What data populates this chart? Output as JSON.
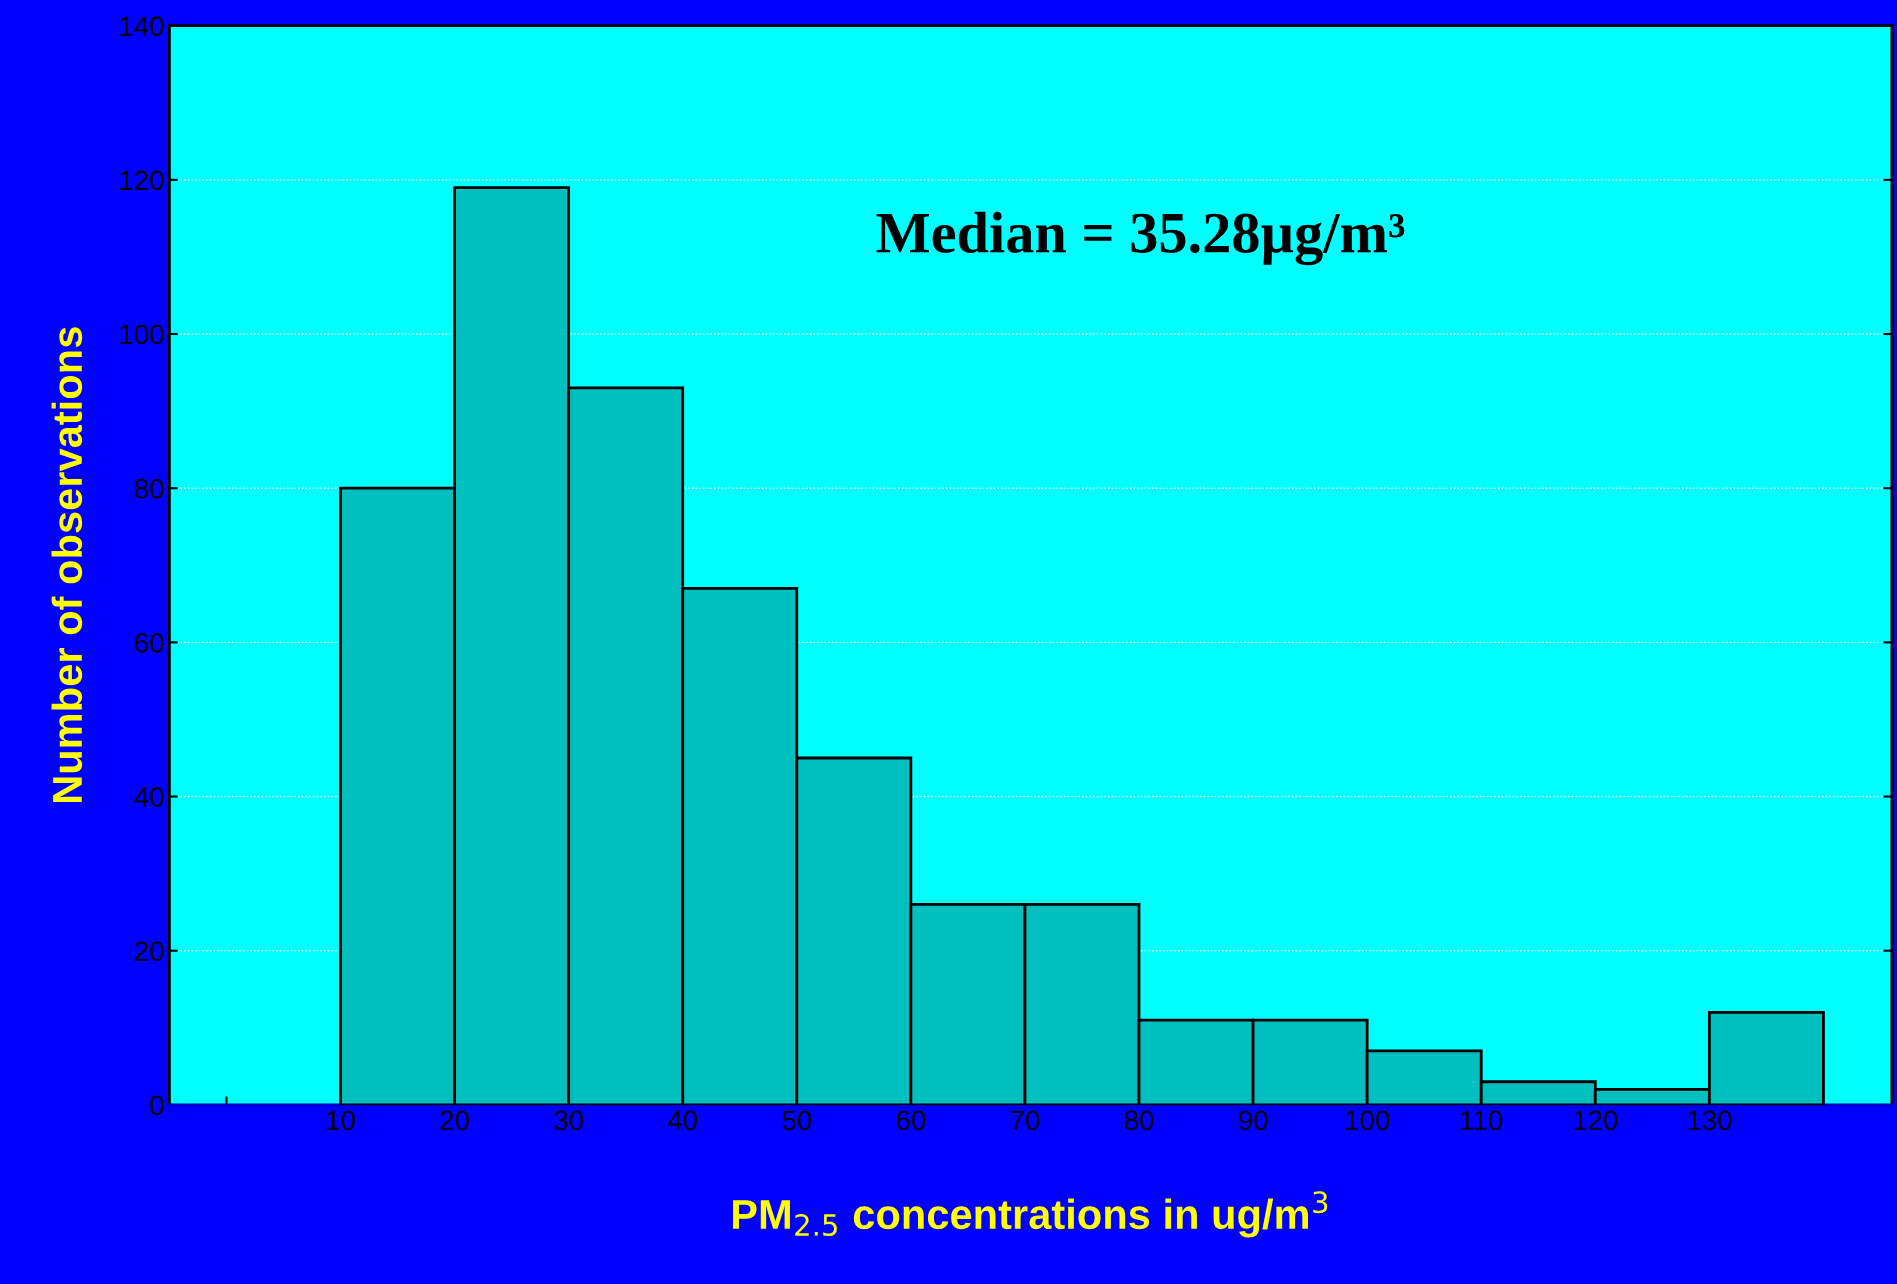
{
  "chart_data": {
    "type": "histogram",
    "xlabel": "PM$_{2.5}$ concentrations in ug/m$^{3}$",
    "ylabel": "Number of observations",
    "bins": [
      10,
      20,
      30,
      40,
      50,
      60,
      70,
      80,
      90,
      100,
      110,
      120,
      130,
      140
    ],
    "values": [
      80,
      119,
      93,
      67,
      45,
      26,
      26,
      11,
      11,
      7,
      3,
      2,
      12
    ],
    "color": "#00bfbf",
    "xlim": [
      -5,
      146
    ],
    "xticks": [
      {
        "value": 0,
        "label": null
      },
      10,
      20,
      30,
      40,
      50,
      60,
      70,
      80,
      90,
      100,
      110,
      120,
      130
    ],
    "ylim": [
      0,
      140
    ],
    "yticks": [
      0,
      20,
      40,
      60,
      80,
      100,
      120,
      140
    ],
    "grid": "y",
    "annotations": [
      "Median = 35.28µg/m³"
    ]
  }
}
